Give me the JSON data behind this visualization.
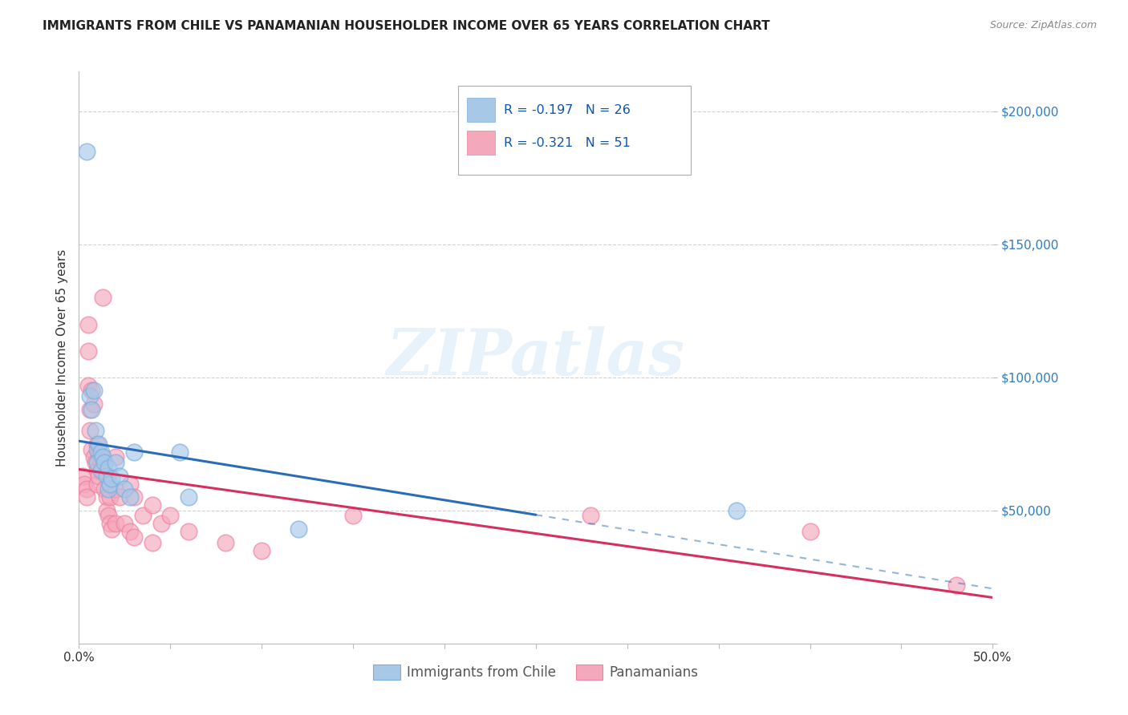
{
  "title": "IMMIGRANTS FROM CHILE VS PANAMANIAN HOUSEHOLDER INCOME OVER 65 YEARS CORRELATION CHART",
  "source": "Source: ZipAtlas.com",
  "ylabel": "Householder Income Over 65 years",
  "watermark": "ZIPatlas",
  "legend_r_chile": "R = -0.197",
  "legend_n_chile": "N = 26",
  "legend_r_pan": "R = -0.321",
  "legend_n_pan": "N = 51",
  "xlim": [
    0.0,
    0.5
  ],
  "ylim": [
    0,
    215000
  ],
  "yticks": [
    0,
    50000,
    100000,
    150000,
    200000
  ],
  "ytick_labels": [
    "",
    "$50,000",
    "$100,000",
    "$150,000",
    "$200,000"
  ],
  "chile_color": "#a8c8e8",
  "pan_color": "#f4a8bc",
  "chile_edge_color": "#7aade0",
  "pan_edge_color": "#f080a0",
  "chile_line_color": "#2b6cb8",
  "pan_line_color": "#d63060",
  "chile_scatter_x": [
    0.004,
    0.006,
    0.007,
    0.008,
    0.009,
    0.01,
    0.01,
    0.011,
    0.012,
    0.012,
    0.013,
    0.014,
    0.015,
    0.016,
    0.016,
    0.017,
    0.018,
    0.02,
    0.022,
    0.025,
    0.028,
    0.03,
    0.055,
    0.06,
    0.12,
    0.36
  ],
  "chile_scatter_y": [
    185000,
    93000,
    88000,
    95000,
    80000,
    73000,
    68000,
    75000,
    72000,
    65000,
    70000,
    68000,
    63000,
    66000,
    58000,
    60000,
    62000,
    68000,
    63000,
    58000,
    55000,
    72000,
    72000,
    55000,
    43000,
    50000
  ],
  "pan_scatter_x": [
    0.002,
    0.003,
    0.004,
    0.004,
    0.005,
    0.005,
    0.005,
    0.006,
    0.006,
    0.007,
    0.007,
    0.008,
    0.008,
    0.009,
    0.01,
    0.01,
    0.01,
    0.011,
    0.011,
    0.012,
    0.013,
    0.013,
    0.014,
    0.015,
    0.015,
    0.016,
    0.016,
    0.017,
    0.017,
    0.018,
    0.02,
    0.02,
    0.02,
    0.022,
    0.025,
    0.028,
    0.028,
    0.03,
    0.03,
    0.035,
    0.04,
    0.04,
    0.045,
    0.05,
    0.06,
    0.08,
    0.1,
    0.15,
    0.28,
    0.4,
    0.48
  ],
  "pan_scatter_y": [
    63000,
    60000,
    58000,
    55000,
    120000,
    110000,
    97000,
    88000,
    80000,
    95000,
    73000,
    90000,
    70000,
    68000,
    75000,
    65000,
    60000,
    72000,
    63000,
    68000,
    130000,
    65000,
    58000,
    55000,
    50000,
    63000,
    48000,
    55000,
    45000,
    43000,
    70000,
    58000,
    45000,
    55000,
    45000,
    60000,
    42000,
    55000,
    40000,
    48000,
    52000,
    38000,
    45000,
    48000,
    42000,
    38000,
    35000,
    48000,
    48000,
    42000,
    22000
  ]
}
